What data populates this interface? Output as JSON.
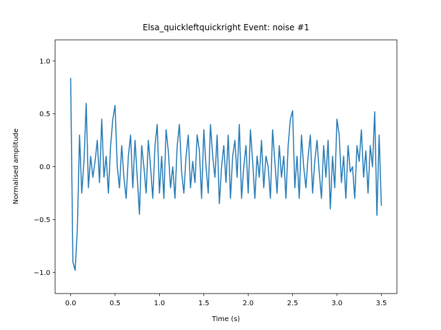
{
  "chart_data": {
    "type": "line",
    "title": "Elsa_quickleftquickright Event: noise #1",
    "x_label": "Time (s)",
    "y_label": "Normalised amplitude",
    "x": [
      0,
      0.025,
      0.05,
      0.075,
      0.1,
      0.125,
      0.15,
      0.175,
      0.2,
      0.225,
      0.25,
      0.275,
      0.3,
      0.325,
      0.35,
      0.375,
      0.4,
      0.425,
      0.45,
      0.475,
      0.5,
      0.525,
      0.55,
      0.575,
      0.6,
      0.625,
      0.65,
      0.675,
      0.7,
      0.725,
      0.75,
      0.775,
      0.8,
      0.825,
      0.85,
      0.875,
      0.9,
      0.925,
      0.95,
      0.975,
      1.0,
      1.025,
      1.05,
      1.075,
      1.1,
      1.125,
      1.15,
      1.175,
      1.2,
      1.225,
      1.25,
      1.275,
      1.3,
      1.325,
      1.35,
      1.375,
      1.4,
      1.425,
      1.45,
      1.475,
      1.5,
      1.525,
      1.55,
      1.575,
      1.6,
      1.625,
      1.65,
      1.675,
      1.7,
      1.725,
      1.75,
      1.775,
      1.8,
      1.825,
      1.85,
      1.875,
      1.9,
      1.925,
      1.95,
      1.975,
      2.0,
      2.025,
      2.05,
      2.075,
      2.1,
      2.125,
      2.15,
      2.175,
      2.2,
      2.225,
      2.25,
      2.275,
      2.3,
      2.325,
      2.35,
      2.375,
      2.4,
      2.425,
      2.45,
      2.475,
      2.5,
      2.525,
      2.55,
      2.575,
      2.6,
      2.625,
      2.65,
      2.675,
      2.7,
      2.725,
      2.75,
      2.775,
      2.8,
      2.825,
      2.85,
      2.875,
      2.9,
      2.925,
      2.95,
      2.975,
      3.0,
      3.025,
      3.05,
      3.075,
      3.1,
      3.125,
      3.15,
      3.175,
      3.2,
      3.225,
      3.25,
      3.275,
      3.3,
      3.325,
      3.35,
      3.375,
      3.4,
      3.425,
      3.45,
      3.475,
      3.5
    ],
    "series": [
      {
        "color": "#1f77b4",
        "values": [
          0.84,
          -0.9,
          -0.98,
          -0.6,
          0.3,
          -0.25,
          0.05,
          0.6,
          -0.2,
          0.1,
          -0.1,
          0.05,
          0.25,
          -0.15,
          0.45,
          -0.1,
          0.1,
          -0.25,
          0.2,
          0.45,
          0.58,
          0.0,
          -0.2,
          0.2,
          -0.1,
          -0.3,
          0.1,
          0.3,
          -0.2,
          0.25,
          -0.1,
          -0.45,
          0.2,
          0.0,
          -0.25,
          0.25,
          0.0,
          -0.3,
          0.2,
          0.4,
          -0.25,
          0.1,
          -0.3,
          0.35,
          0.15,
          -0.2,
          0.0,
          -0.3,
          0.2,
          0.4,
          -0.05,
          -0.25,
          0.1,
          0.3,
          -0.2,
          0.05,
          -0.15,
          0.3,
          0.15,
          -0.3,
          0.35,
          0.0,
          -0.25,
          0.4,
          0.1,
          -0.1,
          0.3,
          -0.35,
          0.0,
          0.2,
          -0.15,
          0.3,
          -0.3,
          0.1,
          0.25,
          -0.1,
          0.4,
          -0.3,
          0.0,
          0.2,
          -0.25,
          0.35,
          0.05,
          -0.3,
          0.1,
          -0.1,
          0.25,
          -0.2,
          0.1,
          0.0,
          -0.3,
          0.35,
          0.05,
          -0.25,
          0.2,
          -0.1,
          0.1,
          -0.3,
          0.2,
          0.45,
          0.53,
          -0.2,
          0.1,
          -0.3,
          0.3,
          0.0,
          -0.2,
          0.1,
          0.3,
          -0.25,
          0.05,
          0.25,
          -0.05,
          -0.3,
          0.2,
          -0.1,
          0.25,
          -0.4,
          0.1,
          -0.2,
          0.45,
          0.3,
          -0.15,
          0.1,
          -0.3,
          0.2,
          -0.05,
          0.0,
          -0.3,
          0.2,
          0.05,
          0.35,
          -0.1,
          0.15,
          -0.25,
          0.2,
          0.0,
          0.52,
          -0.46,
          0.3,
          -0.37
        ]
      }
    ],
    "xlim": [
      -0.175,
      3.675
    ],
    "ylim": [
      -1.2,
      1.2
    ],
    "xticks": [
      {
        "value": 0,
        "label": "0.0"
      },
      0.5,
      {
        "value": 1,
        "label": "1.0"
      },
      1.5,
      {
        "value": 2,
        "label": "2.0"
      },
      2.5,
      {
        "value": 3,
        "label": "3.0"
      },
      3.5
    ],
    "yticks": [
      {
        "value": -1,
        "label": "−1.0"
      },
      {
        "value": -0.5,
        "label": "−0.5"
      },
      {
        "value": 0,
        "label": "0.0"
      },
      0.5,
      {
        "value": 1,
        "label": "1.0"
      }
    ],
    "grid": false
  }
}
